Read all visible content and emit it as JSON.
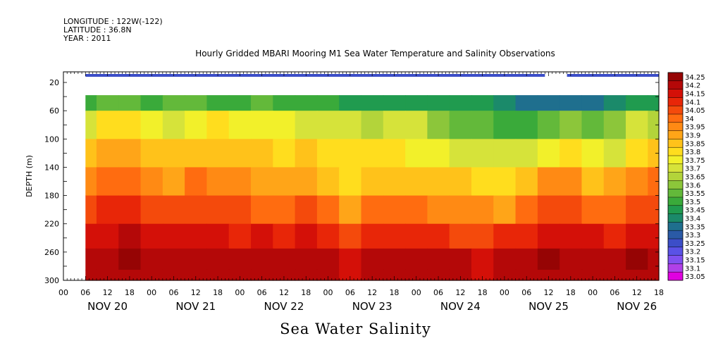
{
  "header": {
    "longitude": "LONGITUDE : 122W(-122)",
    "latitude": "LATITUDE : 36.8N",
    "year": "YEAR : 2011",
    "title": "Hourly Gridded MBARI Mooring M1 Sea Water Temperature and Salinity Observations"
  },
  "caption": "Sea Water Salinity",
  "chart_data": {
    "type": "heatmap",
    "title": "Hourly Gridded MBARI Mooring M1 Sea Water Temperature and Salinity Observations",
    "xlabel": "",
    "ylabel": "DEPTH (m)",
    "ylim": [
      300,
      0
    ],
    "y_axis_inverted": true,
    "y_ticks": [
      20,
      60,
      100,
      140,
      180,
      220,
      260,
      300
    ],
    "x_hours_range": [
      0,
      162
    ],
    "x_tick_labels": [
      "00",
      "06",
      "12",
      "18",
      "00",
      "06",
      "12",
      "18",
      "00",
      "06",
      "12",
      "18",
      "00",
      "06",
      "12",
      "18",
      "00",
      "06",
      "12",
      "18",
      "00",
      "06",
      "12",
      "18",
      "00",
      "06",
      "12",
      "18"
    ],
    "x_date_labels": [
      "NOV 20",
      "NOV 21",
      "NOV 22",
      "NOV 23",
      "NOV 24",
      "NOV 25",
      "NOV 26"
    ],
    "data_start_hour": 6,
    "colorbar_levels": [
      33.05,
      33.1,
      33.15,
      33.2,
      33.25,
      33.3,
      33.35,
      33.4,
      33.45,
      33.5,
      33.55,
      33.6,
      33.65,
      33.7,
      33.75,
      33.8,
      33.85,
      33.9,
      33.95,
      34,
      34.05,
      34.1,
      34.15,
      34.2,
      34.25
    ],
    "colorbar_colors": [
      "#e000e0",
      "#b040e8",
      "#8050f0",
      "#5a52e6",
      "#3c4ec8",
      "#2a5aa6",
      "#1f6f8e",
      "#1b8a6a",
      "#209b4f",
      "#3aaa3a",
      "#63b93a",
      "#8cc63a",
      "#b3d43a",
      "#d6e33a",
      "#f2f02a",
      "#ffdd1e",
      "#ffc21a",
      "#ffa518",
      "#ff8a14",
      "#ff6c10",
      "#f44a0c",
      "#e82608",
      "#d41008",
      "#b40808",
      "#960404"
    ],
    "surface_band_value": 33.25,
    "surface_band_gaps_hours": [
      [
        0,
        6
      ],
      [
        131,
        137
      ]
    ],
    "depth_grid": [
      40,
      80,
      120,
      160,
      200,
      240,
      270,
      300
    ],
    "time_grid": [
      6,
      12,
      18,
      24,
      30,
      36,
      42,
      48,
      54,
      60,
      66,
      72,
      78,
      84,
      90,
      96,
      102,
      108,
      114,
      120,
      126,
      132,
      138,
      144,
      150,
      156,
      162
    ],
    "salinity": [
      [
        33.5,
        33.55,
        33.55,
        33.5,
        33.55,
        33.55,
        33.5,
        33.5,
        33.55,
        33.5,
        33.5,
        33.5,
        33.45,
        33.45,
        33.45,
        33.45,
        33.45,
        33.45,
        33.45,
        33.4,
        33.35,
        33.35,
        33.35,
        33.35,
        33.4,
        33.45,
        33.45
      ],
      [
        33.7,
        33.8,
        33.8,
        33.75,
        33.7,
        33.75,
        33.8,
        33.75,
        33.75,
        33.75,
        33.7,
        33.7,
        33.7,
        33.65,
        33.7,
        33.7,
        33.6,
        33.55,
        33.55,
        33.5,
        33.5,
        33.55,
        33.6,
        33.55,
        33.6,
        33.7,
        33.65
      ],
      [
        33.85,
        33.9,
        33.9,
        33.85,
        33.85,
        33.85,
        33.85,
        33.85,
        33.85,
        33.8,
        33.85,
        33.8,
        33.8,
        33.8,
        33.8,
        33.75,
        33.75,
        33.7,
        33.7,
        33.7,
        33.7,
        33.75,
        33.8,
        33.75,
        33.7,
        33.8,
        33.85
      ],
      [
        33.95,
        34.0,
        34.0,
        33.95,
        33.9,
        34.0,
        33.95,
        33.95,
        33.9,
        33.9,
        33.9,
        33.85,
        33.8,
        33.85,
        33.85,
        33.85,
        33.85,
        33.85,
        33.8,
        33.8,
        33.85,
        33.95,
        33.95,
        33.85,
        33.9,
        33.95,
        34.0
      ],
      [
        34.05,
        34.1,
        34.1,
        34.05,
        34.05,
        34.05,
        34.05,
        34.05,
        34.0,
        34.0,
        34.05,
        34.0,
        33.9,
        34.0,
        34.0,
        34.0,
        33.95,
        33.95,
        33.95,
        33.9,
        34.0,
        34.05,
        34.05,
        34.0,
        34.0,
        34.05,
        34.05
      ],
      [
        34.15,
        34.15,
        34.2,
        34.15,
        34.15,
        34.15,
        34.15,
        34.1,
        34.15,
        34.1,
        34.15,
        34.1,
        34.05,
        34.1,
        34.1,
        34.1,
        34.1,
        34.05,
        34.05,
        34.1,
        34.1,
        34.15,
        34.15,
        34.15,
        34.1,
        34.15,
        34.15
      ],
      [
        34.2,
        34.2,
        34.25,
        34.2,
        34.2,
        34.2,
        34.2,
        34.2,
        34.2,
        34.2,
        34.2,
        34.2,
        34.15,
        34.2,
        34.2,
        34.2,
        34.2,
        34.2,
        34.15,
        34.2,
        34.2,
        34.25,
        34.2,
        34.2,
        34.2,
        34.25,
        34.2
      ],
      [
        34.2,
        34.2,
        34.2,
        34.2,
        34.2,
        34.2,
        34.2,
        34.2,
        34.2,
        34.2,
        34.2,
        34.2,
        34.15,
        34.2,
        34.2,
        34.2,
        34.2,
        34.2,
        34.15,
        34.2,
        34.2,
        34.2,
        34.2,
        34.2,
        34.2,
        34.2,
        34.2
      ]
    ]
  }
}
